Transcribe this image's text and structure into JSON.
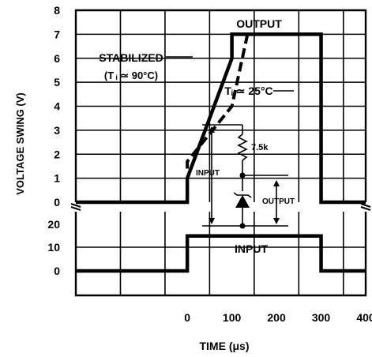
{
  "chart_data": {
    "type": "line",
    "title": "",
    "xlabel": "TIME (μs)",
    "ylabel": "VOLTAGE SWING (V)",
    "x_ticks": [
      "0",
      "100",
      "200",
      "300",
      "400"
    ],
    "xlim": [
      -250,
      400
    ],
    "upper_panel": {
      "y_ticks": [
        "0",
        "1",
        "2",
        "3",
        "4",
        "5",
        "6",
        "7",
        "8"
      ],
      "ylim": [
        0,
        8
      ],
      "series": [
        {
          "name": "OUTPUT",
          "label": "STABILIZED",
          "label2": "(T ᵢ ≃ 90°C)",
          "style": "solid",
          "x": [
            -250,
            0,
            0,
            100,
            100,
            300,
            300,
            400
          ],
          "y": [
            0,
            0,
            1.0,
            6.0,
            7.0,
            7.0,
            0,
            0
          ]
        },
        {
          "name": "",
          "label": "Tᵢ ≃ 25°C",
          "style": "dashed",
          "x": [
            0,
            0,
            100,
            135
          ],
          "y": [
            1.4,
            1.7,
            4.0,
            7.0
          ]
        }
      ]
    },
    "lower_panel": {
      "y_ticks": [
        "0",
        "10",
        "20"
      ],
      "ylim": [
        0,
        25
      ],
      "series": [
        {
          "name": "INPUT",
          "style": "solid",
          "x": [
            -250,
            0,
            0,
            300,
            300,
            400
          ],
          "y": [
            0,
            0,
            15,
            15,
            0,
            0
          ]
        }
      ]
    },
    "inset_circuit": {
      "resistor_label": "7.5k",
      "input_label": "INPUT",
      "output_label": "OUTPUT"
    },
    "grid": true,
    "legend": "none"
  }
}
